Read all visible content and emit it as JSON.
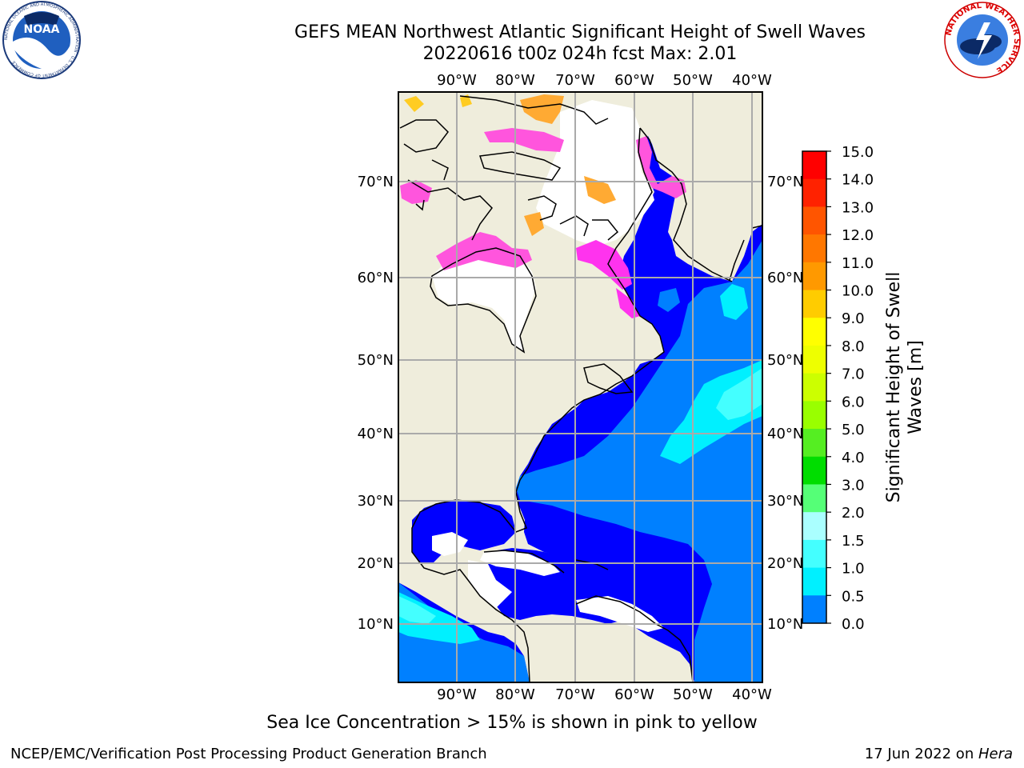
{
  "header": {
    "title_line1": "GEFS MEAN Northwest Atlantic Significant Height of Swell Waves",
    "title_line2": "20220616 t00z 024h fcst   Max: 2.01"
  },
  "logos": {
    "left": "NOAA",
    "left_ring": "NATIONAL OCEANIC AND ATMOSPHERIC ADMINISTRATION · U.S. DEPARTMENT OF COMMERCE",
    "right_ring": "NATIONAL WEATHER SERVICE"
  },
  "map": {
    "lon_labels": [
      "90°W",
      "80°W",
      "70°W",
      "60°W",
      "50°W",
      "40°W"
    ],
    "lat_labels": [
      "70°N",
      "60°N",
      "50°N",
      "40°N",
      "30°N",
      "20°N",
      "10°N"
    ],
    "colors": {
      "land": "#efeddc",
      "ice_pink": "#ff55dd",
      "ice_magenta": "#ff33ee",
      "ice_orange": "#ffaa33",
      "ice_yellow": "#ffcc22",
      "ocean_0": "#0000ff",
      "ocean_05": "#0080ff",
      "ocean_10": "#00f0ff",
      "ocean_15": "#44ffff",
      "grid": "#aaaaaa"
    }
  },
  "colorbar": {
    "label": "Significant Height of Swell Waves [m]",
    "ticks": [
      "15.0",
      "14.0",
      "13.0",
      "12.0",
      "11.0",
      "10.0",
      "9.0",
      "8.0",
      "7.0",
      "6.0",
      "5.0",
      "4.0",
      "3.0",
      "2.0",
      "1.5",
      "1.0",
      "0.5",
      "0.0"
    ],
    "colors": [
      "#ff0000",
      "#ff2200",
      "#ff5500",
      "#ff7700",
      "#ff9900",
      "#ffcc00",
      "#ffff00",
      "#eeff00",
      "#ccff00",
      "#99ff00",
      "#55ee22",
      "#00dd00",
      "#55ff77",
      "#aaffff",
      "#44ffff",
      "#00f0ff",
      "#0080ff",
      "#0000ff"
    ]
  },
  "note": "Sea Ice Concentration > 15% is shown in pink to yellow",
  "footer": {
    "left": "NCEP/EMC/Verification Post Processing Product Generation Branch",
    "right_prefix": "17 Jun 2022 on ",
    "right_host": "Hera"
  }
}
